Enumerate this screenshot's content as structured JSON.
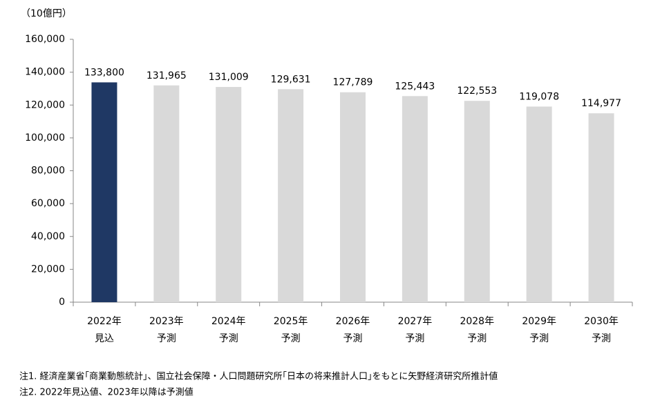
{
  "chart_data": {
    "type": "bar",
    "unit_label": "（10億円）",
    "categories": [
      [
        "2022年",
        "見込"
      ],
      [
        "2023年",
        "予測"
      ],
      [
        "2024年",
        "予測"
      ],
      [
        "2025年",
        "予測"
      ],
      [
        "2026年",
        "予測"
      ],
      [
        "2027年",
        "予測"
      ],
      [
        "2028年",
        "予測"
      ],
      [
        "2029年",
        "予測"
      ],
      [
        "2030年",
        "予測"
      ]
    ],
    "values": [
      133800,
      131965,
      131009,
      129631,
      127789,
      125443,
      122553,
      119078,
      114977
    ],
    "value_labels": [
      "133,800",
      "131,965",
      "131,009",
      "129,631",
      "127,789",
      "125,443",
      "122,553",
      "119,078",
      "114,977"
    ],
    "colors": [
      "#1f3864",
      "#d9d9d9",
      "#d9d9d9",
      "#d9d9d9",
      "#d9d9d9",
      "#d9d9d9",
      "#d9d9d9",
      "#d9d9d9",
      "#d9d9d9"
    ],
    "ylim": [
      0,
      160000
    ],
    "yticks": [
      0,
      {
        "value": 20000,
        "label": "20,000"
      },
      {
        "value": 40000,
        "label": "40,000"
      },
      {
        "value": 60000,
        "label": "60,000"
      },
      {
        "value": 80000,
        "label": "80,000"
      },
      {
        "value": 100000,
        "label": "100,000"
      },
      {
        "value": 120000,
        "label": "120,000"
      },
      {
        "value": 140000,
        "label": "140,000"
      },
      {
        "value": 160000,
        "label": "160,000"
      }
    ],
    "grid": false,
    "notes": [
      "注1. 経済産業省｢商業動態統計｣、国立社会保障・人口問題研究所｢日本の将来推計人口｣をもとに矢野経済研究所推計値",
      "注2. 2022年見込値、2023年以降は予測値"
    ]
  }
}
